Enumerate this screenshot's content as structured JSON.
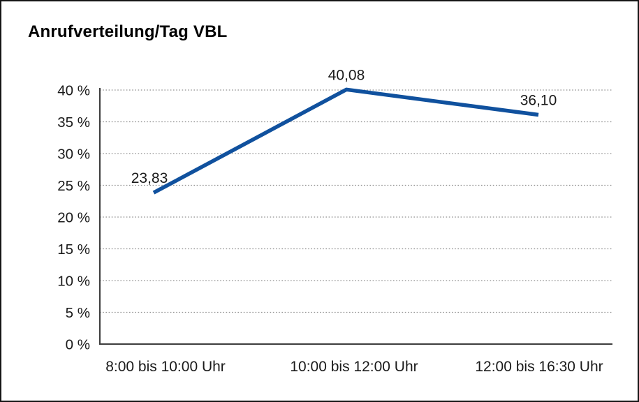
{
  "chart_data": {
    "type": "line",
    "title": "Anrufverteilung/Tag VBL",
    "categories": [
      "8:00 bis 10:00 Uhr",
      "10:00 bis 12:00 Uhr",
      "12:00 bis 16:30 Uhr"
    ],
    "series": [
      {
        "name": "Anrufverteilung",
        "values": [
          23.83,
          40.08,
          36.1
        ],
        "point_labels": [
          "23,83",
          "40,08",
          "36,10"
        ]
      }
    ],
    "xlabel": "",
    "ylabel": "",
    "ylim": [
      0,
      40
    ],
    "y_step": 5,
    "y_tick_labels": [
      "0 %",
      "5 %",
      "10 %",
      "15 %",
      "20 %",
      "25 %",
      "30 %",
      "35 %",
      "40 %"
    ],
    "grid": "horizontal-dotted",
    "legend": "none",
    "colors": {
      "line": "#10519E",
      "axis": "#3d3d3d",
      "gridline": "#8f8f8f",
      "text": "#1a1a1a",
      "frame_border": "#161616",
      "background": "#ffffff"
    }
  }
}
